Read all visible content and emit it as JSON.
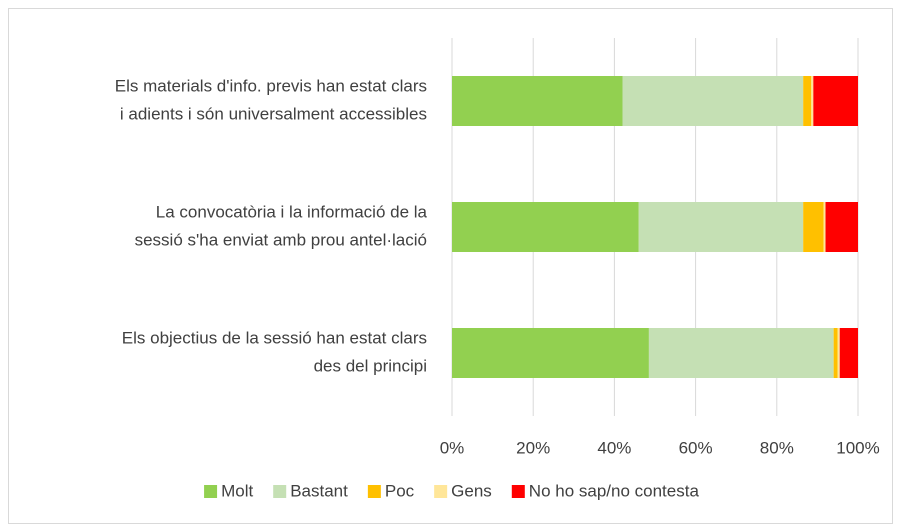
{
  "chart_data": {
    "type": "stacked_bar_horizontal",
    "categories": [
      [
        "Els materials d'info. previs han estat clars",
        "i adients i són universalment accessibles"
      ],
      [
        "La convocatòria i la informació de la",
        "sessió s'ha enviat amb prou antel·lació"
      ],
      [
        "Els objectius de la sessió han estat clars",
        "des del principi"
      ]
    ],
    "series": [
      {
        "name": "Molt",
        "color": "#92d050",
        "values": [
          42,
          46,
          48.5
        ]
      },
      {
        "name": "Bastant",
        "color": "#c5e0b4",
        "values": [
          44.5,
          40.5,
          45.5
        ]
      },
      {
        "name": "Poc",
        "color": "#ffc000",
        "values": [
          2,
          5,
          1
        ]
      },
      {
        "name": "Gens",
        "color": "#ffe699",
        "values": [
          0.5,
          0.5,
          0.5
        ]
      },
      {
        "name": "No ho sap/no contesta",
        "color": "#ff0000",
        "values": [
          11,
          8,
          4.5
        ]
      }
    ],
    "xlim": [
      0,
      100
    ],
    "xticks": [
      {
        "value": 0,
        "label": "0%"
      },
      {
        "value": 20,
        "label": "20%"
      },
      {
        "value": 40,
        "label": "40%"
      },
      {
        "value": 60,
        "label": "60%"
      },
      {
        "value": 80,
        "label": "80%"
      },
      {
        "value": 100,
        "label": "100%"
      }
    ],
    "grid": true,
    "legend": "bottom"
  }
}
